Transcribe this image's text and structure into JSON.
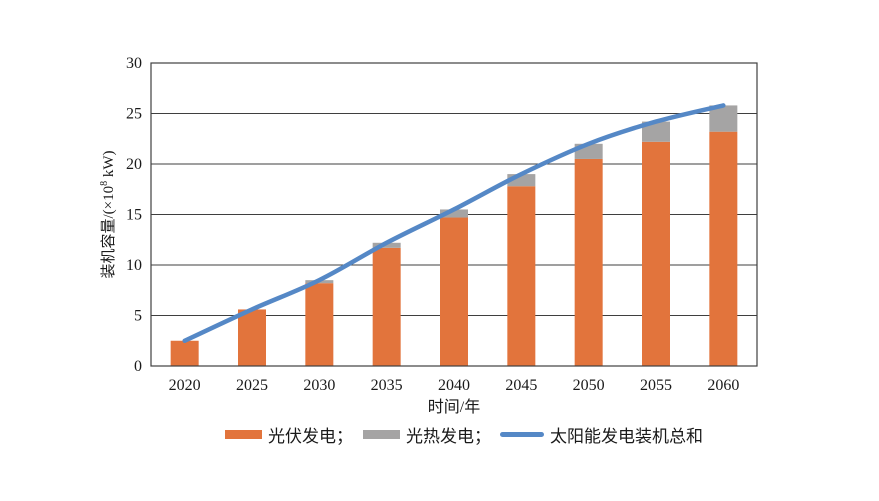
{
  "figure": {
    "background": "#ffffff"
  },
  "chart_data": {
    "type": "bar",
    "subtype": "stacked-bars-with-total-line",
    "title": "",
    "xlabel": "时间/年",
    "ylabel": "装机容量/(×10⁸ kW)",
    "ylabel_parts": {
      "prefix": "装机容量/(×10",
      "superscript": "8",
      "suffix": " kW)"
    },
    "categories": [
      "2020",
      "2025",
      "2030",
      "2035",
      "2040",
      "2045",
      "2050",
      "2055",
      "2060"
    ],
    "series": [
      {
        "name": "光伏发电",
        "legend_label": "光伏发电；",
        "type": "bar",
        "color": "#E2743C",
        "values": [
          2.5,
          5.6,
          8.2,
          11.7,
          14.7,
          17.8,
          20.5,
          22.2,
          23.2
        ]
      },
      {
        "name": "光热发电",
        "legend_label": "光热发电；",
        "type": "bar",
        "color": "#A5A4A4",
        "values": [
          0,
          0,
          0.3,
          0.5,
          0.8,
          1.2,
          1.5,
          2.0,
          2.6
        ]
      },
      {
        "name": "太阳能发电装机总和",
        "legend_label": "太阳能发电装机总和",
        "type": "line",
        "color": "#5588C6",
        "values": [
          2.5,
          5.6,
          8.5,
          12.2,
          15.5,
          19.0,
          22.0,
          24.2,
          25.8
        ]
      }
    ],
    "ylim": [
      0,
      30
    ],
    "yticks": [
      0,
      5,
      10,
      15,
      20,
      25,
      30
    ],
    "grid": true,
    "legend_position": "bottom",
    "colors": {
      "grid": "#3f3f3f",
      "axis": "#3f3f3f",
      "text": "#1a1a1a"
    }
  }
}
